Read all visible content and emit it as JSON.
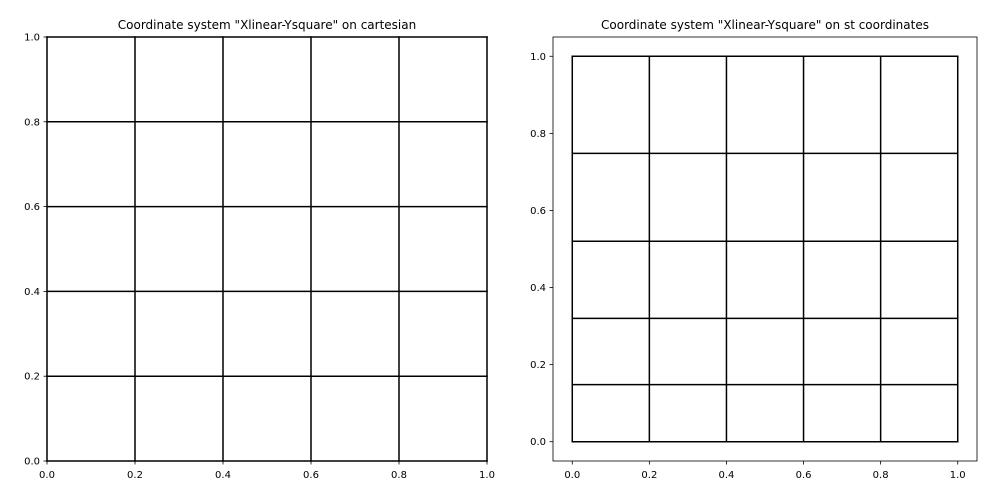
{
  "chart_data": [
    {
      "type": "line",
      "title": "Coordinate system \"Xlinear-Ysquare\" on cartesian",
      "xlabel": "",
      "ylabel": "",
      "xlim": [
        0,
        1
      ],
      "ylim": [
        0,
        1
      ],
      "xticks": [
        "0.0",
        "0.2",
        "0.4",
        "0.6",
        "0.8",
        "1.0"
      ],
      "yticks": [
        "0.0",
        "0.2",
        "0.4",
        "0.6",
        "0.8",
        "1.0"
      ],
      "grid": false,
      "line_color": "#000000",
      "vertical_lines_x": [
        0.0,
        0.2,
        0.4,
        0.6,
        0.8,
        1.0
      ],
      "horizontal_lines_y": [
        0.0,
        0.2,
        0.4,
        0.6,
        0.8,
        1.0
      ]
    },
    {
      "type": "line",
      "title": "Coordinate system \"Xlinear-Ysquare\" on st coordinates",
      "xlabel": "",
      "ylabel": "",
      "xlim": [
        -0.05,
        1.05
      ],
      "ylim": [
        -0.05,
        1.05
      ],
      "xticks": [
        "0.0",
        "0.2",
        "0.4",
        "0.6",
        "0.8",
        "1.0"
      ],
      "yticks": [
        "0.0",
        "0.2",
        "0.4",
        "0.6",
        "0.8",
        "1.0"
      ],
      "grid": false,
      "line_color": "#000000",
      "vertical_lines_x": [
        0.0,
        0.2,
        0.4,
        0.6,
        0.8,
        1.0
      ],
      "horizontal_lines_y": [
        0.0,
        0.148,
        0.32,
        0.52,
        0.748,
        1.0
      ]
    }
  ]
}
